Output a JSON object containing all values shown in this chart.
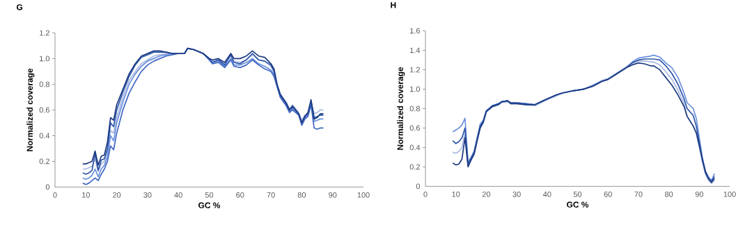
{
  "chart_data": [
    {
      "type": "line",
      "title": "G",
      "xlabel": "GC %",
      "ylabel": "Normalized coverage",
      "xlim": [
        0,
        100
      ],
      "ylim": [
        0,
        1.2
      ],
      "xticks": [
        0,
        10,
        20,
        30,
        40,
        50,
        60,
        70,
        80,
        90,
        100
      ],
      "yticks": [
        0,
        0.2,
        0.4,
        0.6,
        0.8,
        {
          "value": 1,
          "label": "1.0"
        },
        1.2
      ],
      "series": [
        {
          "color": "#a9b8e0",
          "x": [
            9,
            10,
            11,
            12,
            13,
            14,
            15,
            16,
            17,
            18,
            19,
            20,
            22,
            24,
            26,
            28,
            30,
            32,
            34,
            36,
            38,
            40,
            42,
            43,
            45,
            48,
            50,
            51,
            53,
            55,
            57,
            58,
            60,
            62,
            64,
            66,
            68,
            70,
            71,
            72,
            73,
            75,
            76,
            77,
            78,
            79,
            80,
            81,
            82,
            83,
            84,
            85,
            86,
            87
          ],
          "values": [
            0.14,
            0.14,
            0.15,
            0.16,
            0.22,
            0.12,
            0.18,
            0.2,
            0.28,
            0.44,
            0.42,
            0.54,
            0.7,
            0.83,
            0.9,
            0.96,
            0.99,
            1.02,
            1.03,
            1.04,
            1.04,
            1.04,
            1.04,
            1.08,
            1.07,
            1.04,
            1.0,
            0.98,
            0.99,
            0.96,
            1.02,
            0.98,
            0.97,
            0.99,
            1.03,
            0.99,
            0.98,
            0.94,
            0.9,
            0.8,
            0.73,
            0.66,
            0.61,
            0.64,
            0.61,
            0.58,
            0.52,
            0.56,
            0.58,
            0.66,
            0.57,
            0.58,
            0.6,
            0.6
          ]
        },
        {
          "color": "#6a8fdc",
          "x": [
            9,
            10,
            11,
            12,
            13,
            14,
            15,
            16,
            17,
            18,
            19,
            20,
            22,
            24,
            26,
            28,
            30,
            32,
            34,
            36,
            38,
            40,
            42,
            43,
            45,
            48,
            50,
            51,
            53,
            55,
            57,
            58,
            60,
            62,
            64,
            66,
            68,
            70,
            71,
            72,
            73,
            75,
            76,
            77,
            78,
            79,
            80,
            81,
            82,
            83,
            84,
            85,
            86,
            87
          ],
          "values": [
            0.07,
            0.06,
            0.07,
            0.09,
            0.14,
            0.08,
            0.14,
            0.17,
            0.24,
            0.4,
            0.36,
            0.5,
            0.66,
            0.8,
            0.88,
            0.94,
            0.98,
            1.0,
            1.02,
            1.03,
            1.04,
            1.04,
            1.04,
            1.08,
            1.07,
            1.04,
            0.99,
            0.97,
            0.98,
            0.94,
            1.0,
            0.95,
            0.95,
            0.97,
            1.0,
            0.96,
            0.94,
            0.91,
            0.88,
            0.79,
            0.71,
            0.64,
            0.59,
            0.61,
            0.59,
            0.57,
            0.49,
            0.54,
            0.56,
            0.65,
            0.51,
            0.52,
            0.53,
            0.53
          ]
        },
        {
          "color": "#2d55a8",
          "x": [
            9,
            10,
            11,
            12,
            13,
            14,
            15,
            16,
            17,
            18,
            19,
            20,
            22,
            24,
            26,
            28,
            30,
            32,
            34,
            36,
            38,
            40,
            42,
            43,
            45,
            48,
            50,
            51,
            53,
            55,
            57,
            58,
            60,
            62,
            64,
            66,
            68,
            70,
            71,
            72,
            73,
            75,
            76,
            77,
            78,
            79,
            80,
            81,
            82,
            83,
            84,
            85,
            86,
            87
          ],
          "values": [
            0.11,
            0.1,
            0.11,
            0.13,
            0.26,
            0.13,
            0.21,
            0.22,
            0.3,
            0.5,
            0.47,
            0.6,
            0.74,
            0.86,
            0.95,
            1.01,
            1.03,
            1.05,
            1.05,
            1.05,
            1.04,
            1.04,
            1.04,
            1.08,
            1.07,
            1.04,
            1.0,
            0.97,
            0.99,
            0.95,
            1.03,
            0.97,
            0.96,
            0.99,
            1.04,
            0.99,
            0.98,
            0.95,
            0.9,
            0.79,
            0.72,
            0.65,
            0.6,
            0.62,
            0.6,
            0.57,
            0.5,
            0.55,
            0.57,
            0.67,
            0.54,
            0.55,
            0.56,
            0.56
          ]
        },
        {
          "color": "#3f66c2",
          "x": [
            9,
            10,
            11,
            12,
            13,
            14,
            15,
            16,
            17,
            18,
            19,
            20,
            22,
            24,
            26,
            28,
            30,
            32,
            34,
            36,
            38,
            40,
            42,
            43,
            45,
            48,
            50,
            51,
            53,
            55,
            57,
            58,
            60,
            62,
            64,
            66,
            68,
            70,
            71,
            72,
            73,
            75,
            76,
            77,
            78,
            79,
            80,
            81,
            82,
            83,
            84,
            85,
            86,
            87
          ],
          "values": [
            0.03,
            0.02,
            0.03,
            0.05,
            0.07,
            0.05,
            0.1,
            0.14,
            0.2,
            0.32,
            0.29,
            0.42,
            0.6,
            0.73,
            0.82,
            0.9,
            0.95,
            0.98,
            1.0,
            1.02,
            1.03,
            1.04,
            1.04,
            1.08,
            1.07,
            1.04,
            0.99,
            0.96,
            0.97,
            0.93,
            0.99,
            0.94,
            0.93,
            0.95,
            0.99,
            0.95,
            0.92,
            0.9,
            0.86,
            0.78,
            0.7,
            0.63,
            0.58,
            0.6,
            0.58,
            0.56,
            0.48,
            0.53,
            0.55,
            0.64,
            0.46,
            0.45,
            0.46,
            0.46
          ]
        },
        {
          "color": "#1c3a80",
          "x": [
            9,
            10,
            11,
            12,
            13,
            14,
            15,
            16,
            17,
            18,
            19,
            20,
            22,
            24,
            26,
            28,
            30,
            32,
            34,
            36,
            38,
            40,
            42,
            43,
            45,
            48,
            50,
            51,
            53,
            55,
            57,
            58,
            60,
            62,
            64,
            66,
            68,
            70,
            71,
            72,
            73,
            75,
            76,
            77,
            78,
            79,
            80,
            81,
            82,
            83,
            84,
            85,
            86,
            87
          ],
          "values": [
            0.18,
            0.18,
            0.19,
            0.2,
            0.28,
            0.17,
            0.24,
            0.25,
            0.35,
            0.54,
            0.52,
            0.64,
            0.76,
            0.88,
            0.96,
            1.02,
            1.04,
            1.06,
            1.06,
            1.05,
            1.04,
            1.04,
            1.04,
            1.08,
            1.07,
            1.04,
            1.0,
            0.99,
            1.0,
            0.97,
            1.04,
            1.0,
            1.0,
            1.02,
            1.06,
            1.02,
            1.01,
            0.96,
            0.92,
            0.8,
            0.72,
            0.65,
            0.6,
            0.63,
            0.6,
            0.57,
            0.5,
            0.55,
            0.58,
            0.68,
            0.53,
            0.54,
            0.57,
            0.57
          ]
        }
      ]
    },
    {
      "type": "line",
      "title": "H",
      "xlabel": "GC %",
      "ylabel": "Normalized coverage",
      "xlim": [
        0,
        100
      ],
      "ylim": [
        0,
        1.6
      ],
      "xticks": [
        0,
        10,
        20,
        30,
        40,
        50,
        60,
        70,
        80,
        90,
        100
      ],
      "yticks": [
        0,
        0.2,
        0.4,
        0.6,
        0.8,
        {
          "value": 1,
          "label": "1.0"
        },
        1.2,
        1.4,
        1.6
      ],
      "series": [
        {
          "color": "#a9b8e0",
          "x": [
            9,
            10,
            11,
            12,
            13,
            14,
            15,
            16,
            17,
            18,
            19,
            20,
            22,
            24,
            25,
            27,
            28,
            30,
            33,
            36,
            38,
            40,
            43,
            45,
            48,
            50,
            52,
            55,
            58,
            60,
            63,
            66,
            68,
            70,
            72,
            74,
            75,
            77,
            79,
            81,
            83,
            85,
            86,
            88,
            89,
            90,
            91,
            92,
            93,
            94,
            95
          ],
          "values": [
            0.35,
            0.34,
            0.36,
            0.4,
            0.55,
            0.22,
            0.28,
            0.34,
            0.47,
            0.6,
            0.65,
            0.76,
            0.82,
            0.84,
            0.86,
            0.87,
            0.85,
            0.85,
            0.84,
            0.83,
            0.86,
            0.89,
            0.93,
            0.96,
            0.98,
            0.99,
            1.0,
            1.04,
            1.09,
            1.11,
            1.17,
            1.23,
            1.27,
            1.29,
            1.29,
            1.28,
            1.28,
            1.25,
            1.18,
            1.1,
            0.99,
            0.85,
            0.72,
            0.62,
            0.55,
            0.4,
            0.25,
            0.13,
            0.06,
            0.03,
            0.06
          ]
        },
        {
          "color": "#6a8fdc",
          "x": [
            9,
            10,
            11,
            12,
            13,
            14,
            15,
            16,
            17,
            18,
            19,
            20,
            22,
            24,
            25,
            27,
            28,
            30,
            33,
            36,
            38,
            40,
            43,
            45,
            48,
            50,
            52,
            55,
            58,
            60,
            63,
            66,
            68,
            70,
            72,
            74,
            75,
            77,
            79,
            81,
            83,
            85,
            86,
            88,
            89,
            90,
            91,
            92,
            93,
            94,
            95
          ],
          "values": [
            0.56,
            0.58,
            0.6,
            0.63,
            0.7,
            0.25,
            0.3,
            0.36,
            0.5,
            0.64,
            0.68,
            0.78,
            0.83,
            0.85,
            0.87,
            0.88,
            0.86,
            0.86,
            0.85,
            0.84,
            0.87,
            0.9,
            0.94,
            0.96,
            0.98,
            0.99,
            1.0,
            1.04,
            1.08,
            1.1,
            1.16,
            1.22,
            1.28,
            1.32,
            1.33,
            1.34,
            1.35,
            1.33,
            1.27,
            1.22,
            1.12,
            0.96,
            0.86,
            0.8,
            0.7,
            0.5,
            0.3,
            0.15,
            0.1,
            0.06,
            0.13
          ]
        },
        {
          "color": "#2d55a8",
          "x": [
            9,
            10,
            11,
            12,
            13,
            14,
            15,
            16,
            17,
            18,
            19,
            20,
            22,
            24,
            25,
            27,
            28,
            30,
            33,
            36,
            38,
            40,
            43,
            45,
            48,
            50,
            52,
            55,
            58,
            60,
            63,
            66,
            68,
            70,
            72,
            74,
            75,
            77,
            79,
            81,
            83,
            85,
            86,
            88,
            89,
            90,
            91,
            92,
            93,
            94,
            95
          ],
          "values": [
            0.47,
            0.44,
            0.46,
            0.5,
            0.6,
            0.23,
            0.29,
            0.35,
            0.49,
            0.62,
            0.67,
            0.77,
            0.83,
            0.85,
            0.87,
            0.88,
            0.86,
            0.86,
            0.85,
            0.84,
            0.87,
            0.9,
            0.94,
            0.96,
            0.98,
            0.99,
            1.0,
            1.03,
            1.08,
            1.1,
            1.16,
            1.22,
            1.27,
            1.3,
            1.31,
            1.31,
            1.31,
            1.3,
            1.24,
            1.16,
            1.05,
            0.9,
            0.8,
            0.73,
            0.62,
            0.45,
            0.27,
            0.14,
            0.08,
            0.05,
            0.1
          ]
        },
        {
          "color": "#1c3a80",
          "x": [
            9,
            10,
            11,
            12,
            13,
            14,
            15,
            16,
            17,
            18,
            19,
            20,
            22,
            24,
            25,
            27,
            28,
            30,
            33,
            36,
            38,
            40,
            43,
            45,
            48,
            50,
            52,
            55,
            58,
            60,
            63,
            66,
            68,
            70,
            72,
            74,
            75,
            77,
            79,
            81,
            83,
            85,
            86,
            88,
            89,
            90,
            91,
            92,
            93,
            94,
            95
          ],
          "values": [
            0.24,
            0.22,
            0.23,
            0.28,
            0.5,
            0.2,
            0.27,
            0.33,
            0.47,
            0.6,
            0.66,
            0.77,
            0.82,
            0.84,
            0.87,
            0.88,
            0.85,
            0.85,
            0.84,
            0.84,
            0.87,
            0.9,
            0.94,
            0.96,
            0.98,
            0.99,
            1.0,
            1.03,
            1.08,
            1.1,
            1.16,
            1.22,
            1.25,
            1.27,
            1.26,
            1.24,
            1.24,
            1.2,
            1.12,
            1.04,
            0.94,
            0.82,
            0.72,
            0.62,
            0.55,
            0.42,
            0.28,
            0.16,
            0.08,
            0.04,
            0.08
          ]
        }
      ]
    }
  ]
}
